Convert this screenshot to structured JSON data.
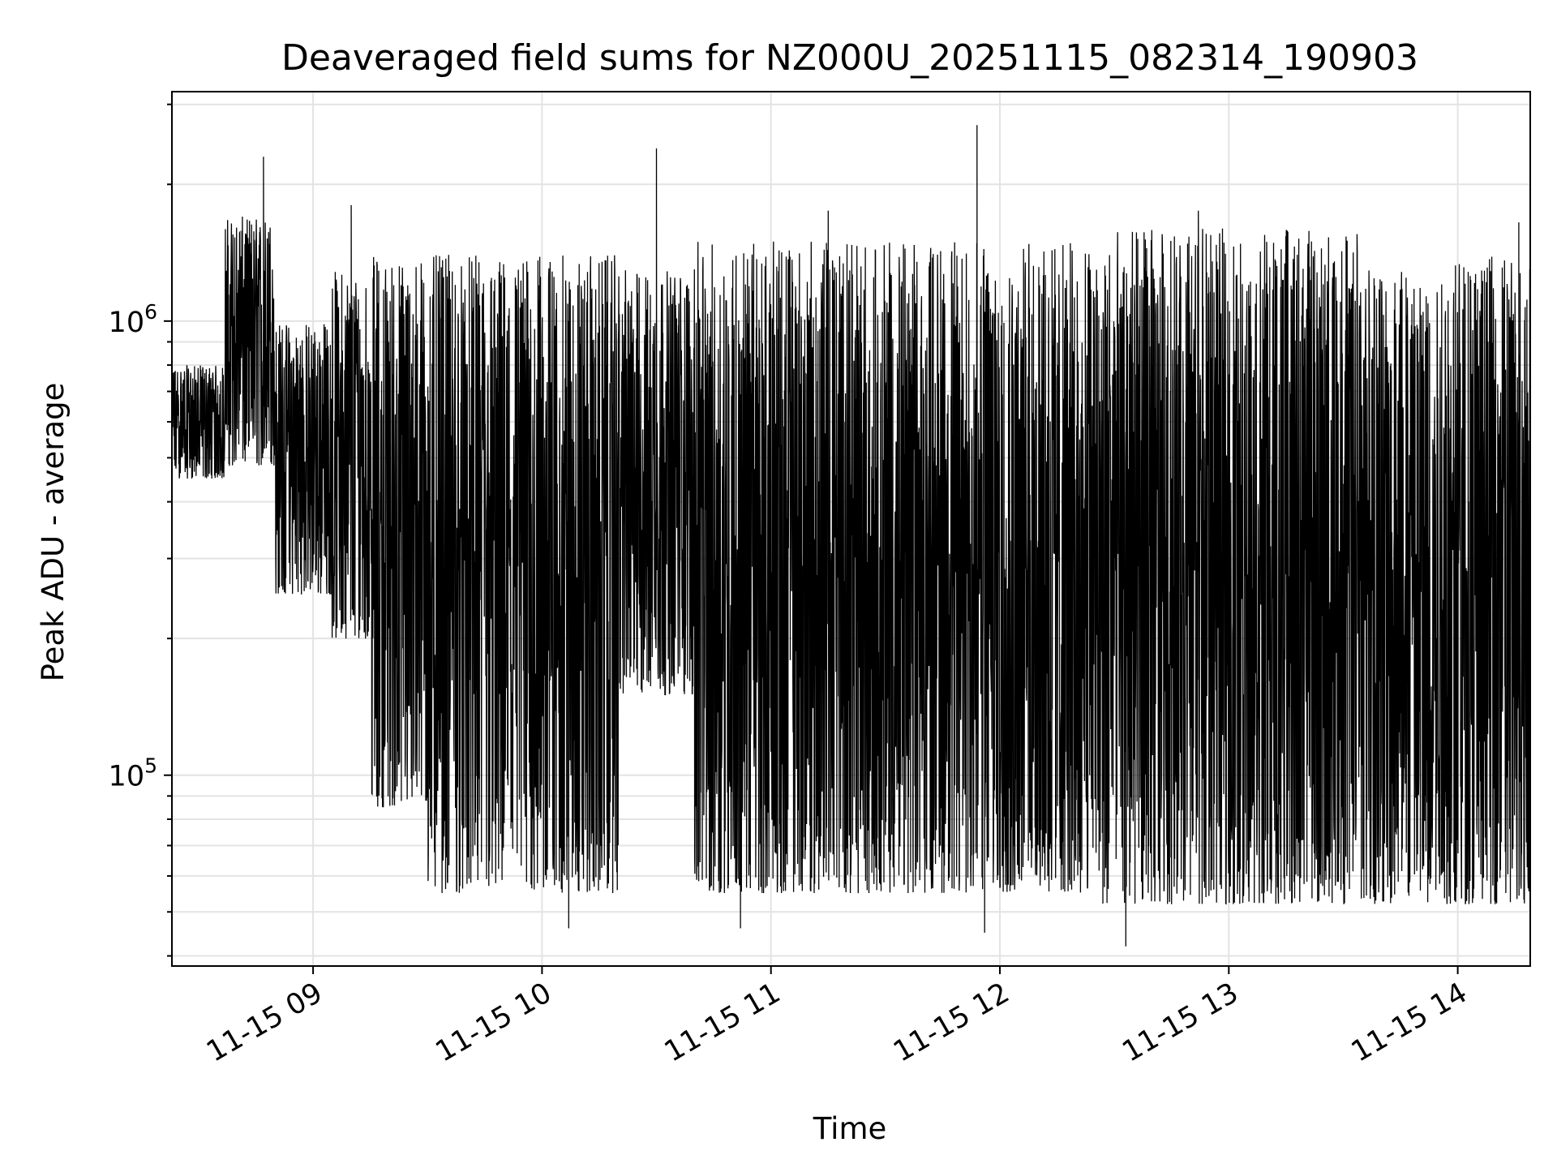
{
  "chart_data": {
    "type": "line",
    "title": "Deaveraged field sums for NZ000U_20251115_082314_190903",
    "xlabel": "Time",
    "ylabel": "Peak ADU - average",
    "y_scale": "log",
    "ylim": [
      38000,
      3200000
    ],
    "xlim": [
      "2025-11-15T08:23:00",
      "2025-11-15T14:19:00"
    ],
    "grid": true,
    "line_color": "#000000",
    "grid_color": "#e3e3e3",
    "x_ticks": [
      {
        "time": "2025-11-15T09:00:00",
        "label": "11-15 09"
      },
      {
        "time": "2025-11-15T10:00:00",
        "label": "11-15 10"
      },
      {
        "time": "2025-11-15T11:00:00",
        "label": "11-15 11"
      },
      {
        "time": "2025-11-15T12:00:00",
        "label": "11-15 12"
      },
      {
        "time": "2025-11-15T13:00:00",
        "label": "11-15 13"
      },
      {
        "time": "2025-11-15T14:00:00",
        "label": "11-15 14"
      }
    ],
    "y_ticks": [
      {
        "value": 100000,
        "base": "10",
        "exp": "5"
      },
      {
        "value": 1000000,
        "base": "10",
        "exp": "6"
      }
    ],
    "series": [
      {
        "segments": [
          {
            "start": "2025-11-15T08:23:00",
            "end": "2025-11-15T08:37:00",
            "min": 450000,
            "max": 800000
          },
          {
            "start": "2025-11-15T08:37:00",
            "end": "2025-11-15T08:50:00",
            "min": 480000,
            "max": 1700000
          },
          {
            "start": "2025-11-15T08:50:00",
            "end": "2025-11-15T09:05:00",
            "min": 250000,
            "max": 1000000
          },
          {
            "start": "2025-11-15T09:05:00",
            "end": "2025-11-15T09:15:00",
            "min": 200000,
            "max": 1300000
          },
          {
            "start": "2025-11-15T09:15:00",
            "end": "2025-11-15T09:30:00",
            "min": 85000,
            "max": 1400000
          },
          {
            "start": "2025-11-15T09:30:00",
            "end": "2025-11-15T10:20:00",
            "min": 55000,
            "max": 1400000
          },
          {
            "start": "2025-11-15T10:20:00",
            "end": "2025-11-15T10:40:00",
            "min": 150000,
            "max": 1300000
          },
          {
            "start": "2025-11-15T10:40:00",
            "end": "2025-11-15T12:25:00",
            "min": 55000,
            "max": 1500000
          },
          {
            "start": "2025-11-15T12:25:00",
            "end": "2025-11-15T13:35:00",
            "min": 52000,
            "max": 1600000
          },
          {
            "start": "2025-11-15T13:35:00",
            "end": "2025-11-15T14:19:00",
            "min": 52000,
            "max": 1400000
          }
        ],
        "peaks": [
          {
            "time": "2025-11-15T08:47:00",
            "value": 2300000
          },
          {
            "time": "2025-11-15T09:10:00",
            "value": 1800000
          },
          {
            "time": "2025-11-15T10:30:00",
            "value": 2400000
          },
          {
            "time": "2025-11-15T11:15:00",
            "value": 1750000
          },
          {
            "time": "2025-11-15T11:54:00",
            "value": 2700000
          },
          {
            "time": "2025-11-15T12:52:00",
            "value": 1750000
          },
          {
            "time": "2025-11-15T14:16:00",
            "value": 1650000
          }
        ],
        "troughs": [
          {
            "time": "2025-11-15T10:07:00",
            "value": 46000
          },
          {
            "time": "2025-11-15T10:52:00",
            "value": 46000
          },
          {
            "time": "2025-11-15T11:56:00",
            "value": 45000
          },
          {
            "time": "2025-11-15T12:33:00",
            "value": 42000
          }
        ]
      }
    ]
  }
}
